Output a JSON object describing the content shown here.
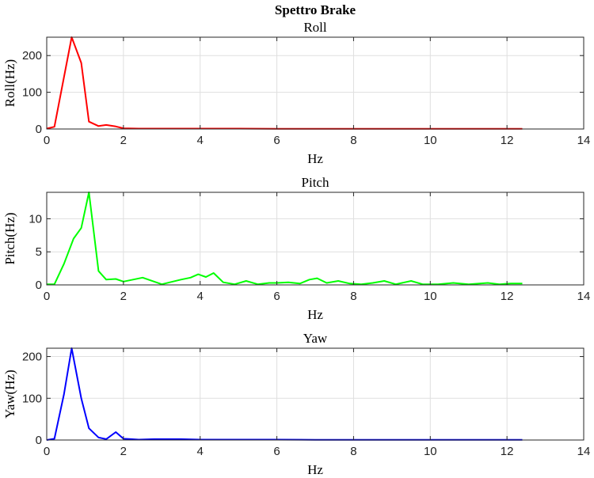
{
  "figure_title": "Spettro Brake",
  "chart_data": [
    {
      "type": "line",
      "title": "Roll",
      "xlabel": "Hz",
      "ylabel": "Roll(Hz)",
      "xlim": [
        0,
        14
      ],
      "ylim": [
        0,
        250
      ],
      "xticks": [
        0,
        2,
        4,
        6,
        8,
        10,
        12,
        14
      ],
      "yticks": [
        0,
        100,
        200
      ],
      "grid": true,
      "color": "#ff0000",
      "x": [
        0,
        0.2,
        0.65,
        0.9,
        1.1,
        1.35,
        1.55,
        1.8,
        2.0,
        2.4,
        3,
        4,
        5,
        6,
        7,
        8,
        9,
        10,
        11,
        12,
        12.4
      ],
      "y": [
        1,
        6,
        250,
        180,
        20,
        8,
        11,
        7,
        2,
        1,
        1,
        1,
        1,
        0.5,
        0.5,
        0.5,
        0.5,
        0.5,
        0.5,
        0.5,
        0.5
      ]
    },
    {
      "type": "line",
      "title": "Pitch",
      "xlabel": "Hz",
      "ylabel": "Pitch(Hz)",
      "xlim": [
        0,
        14
      ],
      "ylim": [
        0,
        14
      ],
      "xticks": [
        0,
        2,
        4,
        6,
        8,
        10,
        12,
        14
      ],
      "yticks": [
        0,
        5,
        10
      ],
      "grid": true,
      "color": "#00ff00",
      "x": [
        0,
        0.2,
        0.45,
        0.7,
        0.9,
        1.1,
        1.35,
        1.55,
        1.8,
        2.0,
        2.5,
        3.0,
        3.5,
        3.75,
        3.95,
        4.15,
        4.35,
        4.6,
        4.9,
        5.2,
        5.5,
        5.8,
        6.0,
        6.3,
        6.6,
        6.85,
        7.05,
        7.3,
        7.6,
        7.9,
        8.2,
        8.5,
        8.8,
        9.1,
        9.5,
        9.8,
        10.2,
        10.6,
        11.0,
        11.5,
        11.8,
        12.1,
        12.4
      ],
      "y": [
        0.1,
        0.1,
        3.2,
        7,
        8.6,
        14,
        2.1,
        0.8,
        0.9,
        0.5,
        1.1,
        0.1,
        0.8,
        1.1,
        1.6,
        1.2,
        1.8,
        0.4,
        0.1,
        0.6,
        0.1,
        0.3,
        0.3,
        0.4,
        0.2,
        0.8,
        1.0,
        0.3,
        0.6,
        0.2,
        0.1,
        0.3,
        0.6,
        0.1,
        0.6,
        0.1,
        0.1,
        0.3,
        0.1,
        0.3,
        0.1,
        0.2,
        0.2
      ]
    },
    {
      "type": "line",
      "title": "Yaw",
      "xlabel": "Hz",
      "ylabel": "Yaw(Hz)",
      "xlim": [
        0,
        14
      ],
      "ylim": [
        0,
        220
      ],
      "xticks": [
        0,
        2,
        4,
        6,
        8,
        10,
        12,
        14
      ],
      "yticks": [
        0,
        100,
        200
      ],
      "grid": true,
      "color": "#0000ff",
      "x": [
        0,
        0.2,
        0.45,
        0.65,
        0.9,
        1.1,
        1.35,
        1.55,
        1.8,
        2.0,
        2.2,
        2.4,
        2.8,
        3.5,
        4,
        5,
        6,
        7,
        8,
        9,
        10,
        11,
        12,
        12.4
      ],
      "y": [
        0,
        3,
        110,
        220,
        100,
        28,
        6,
        2,
        19,
        3,
        2,
        1,
        2,
        2,
        1,
        1,
        1,
        0.5,
        0.5,
        0.5,
        0.5,
        0.5,
        0.5,
        0.5
      ]
    }
  ]
}
